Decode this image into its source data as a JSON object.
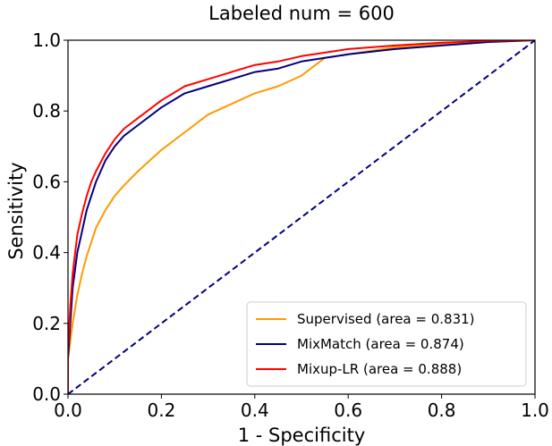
{
  "chart_data": {
    "type": "line",
    "title": "Labeled num = 600",
    "xlabel": "1 - Specificity",
    "ylabel": "Sensitivity",
    "xlim": [
      0.0,
      1.0
    ],
    "ylim": [
      0.0,
      1.0
    ],
    "xticks": [
      "0.0",
      "0.2",
      "0.4",
      "0.6",
      "0.8",
      "1.0"
    ],
    "yticks": [
      "0.0",
      "0.2",
      "0.4",
      "0.6",
      "0.8",
      "1.0"
    ],
    "grid": false,
    "legend_position": "lower-right",
    "series": [
      {
        "name": "Supervised (area = 0.831)",
        "color": "#ff9900",
        "x": [
          0.0,
          0.0,
          0.005,
          0.01,
          0.02,
          0.03,
          0.04,
          0.05,
          0.06,
          0.08,
          0.1,
          0.12,
          0.15,
          0.2,
          0.25,
          0.3,
          0.35,
          0.4,
          0.45,
          0.5,
          0.55,
          0.6,
          0.7,
          0.8,
          0.9,
          1.0
        ],
        "y": [
          0.0,
          0.1,
          0.15,
          0.2,
          0.28,
          0.34,
          0.39,
          0.43,
          0.47,
          0.52,
          0.56,
          0.59,
          0.63,
          0.69,
          0.74,
          0.79,
          0.82,
          0.85,
          0.87,
          0.9,
          0.95,
          0.96,
          0.98,
          0.99,
          0.995,
          1.0
        ]
      },
      {
        "name": "MixMatch (area = 0.874)",
        "color": "#000080",
        "x": [
          0.0,
          0.0,
          0.005,
          0.01,
          0.02,
          0.03,
          0.04,
          0.05,
          0.06,
          0.08,
          0.1,
          0.12,
          0.15,
          0.2,
          0.25,
          0.3,
          0.35,
          0.4,
          0.45,
          0.5,
          0.55,
          0.6,
          0.7,
          0.8,
          0.9,
          1.0
        ],
        "y": [
          0.0,
          0.1,
          0.2,
          0.3,
          0.4,
          0.46,
          0.52,
          0.56,
          0.6,
          0.66,
          0.7,
          0.73,
          0.76,
          0.81,
          0.85,
          0.87,
          0.89,
          0.91,
          0.92,
          0.94,
          0.95,
          0.96,
          0.975,
          0.985,
          0.995,
          1.0
        ]
      },
      {
        "name": "Mixup-LR (area = 0.888)",
        "color": "#ff0000",
        "x": [
          0.0,
          0.0,
          0.005,
          0.01,
          0.02,
          0.03,
          0.04,
          0.05,
          0.06,
          0.08,
          0.1,
          0.12,
          0.15,
          0.2,
          0.25,
          0.3,
          0.35,
          0.4,
          0.45,
          0.5,
          0.55,
          0.6,
          0.7,
          0.8,
          0.9,
          1.0
        ],
        "y": [
          0.0,
          0.13,
          0.25,
          0.34,
          0.45,
          0.51,
          0.56,
          0.6,
          0.63,
          0.68,
          0.72,
          0.75,
          0.78,
          0.83,
          0.87,
          0.89,
          0.91,
          0.93,
          0.94,
          0.955,
          0.965,
          0.975,
          0.985,
          0.993,
          0.998,
          1.0
        ]
      },
      {
        "name": "",
        "color": "#000080",
        "style": "dashed",
        "x": [
          0.0,
          1.0
        ],
        "y": [
          0.0,
          1.0
        ]
      }
    ]
  }
}
